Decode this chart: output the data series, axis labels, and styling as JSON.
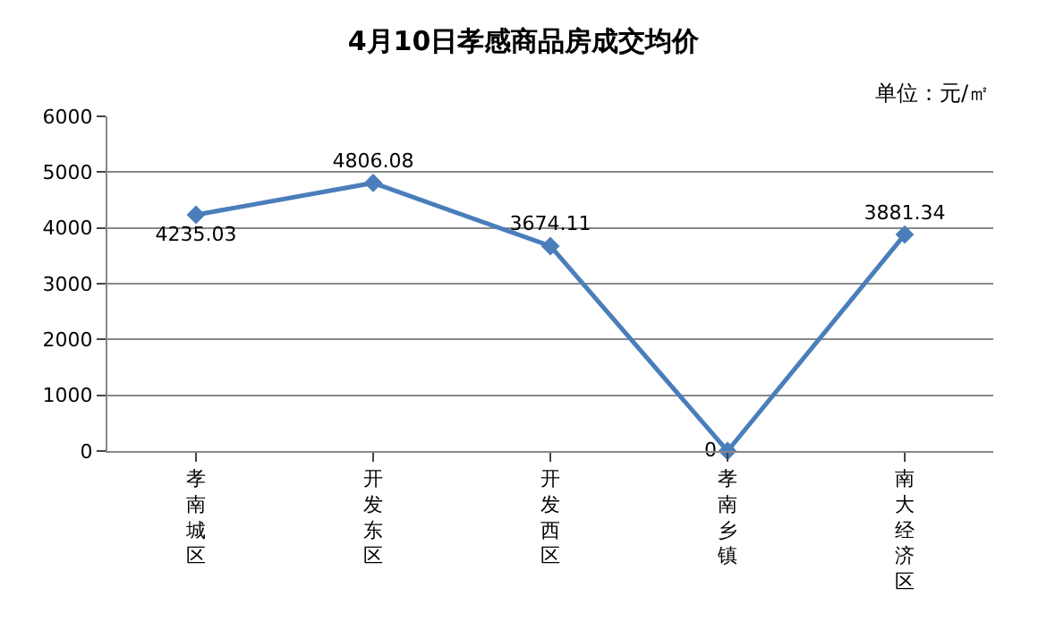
{
  "chart_data": {
    "type": "line",
    "title": "4月10日孝感商品房成交均价",
    "subtitle": "单位：元/㎡",
    "categories": [
      "孝南城区",
      "开发东区",
      "开发西区",
      "孝南乡镇",
      "南大经济区"
    ],
    "series": [
      {
        "color": "#4a7ebb",
        "values": [
          4235.03,
          4806.08,
          3674.11,
          0,
          3881.34
        ]
      }
    ],
    "ylim": [
      0,
      6000
    ],
    "yticks": [
      0,
      1000,
      2000,
      3000,
      4000,
      5000,
      6000
    ],
    "grid": "y",
    "marker": "diamond",
    "line_style": "solid",
    "data_labels": true
  }
}
